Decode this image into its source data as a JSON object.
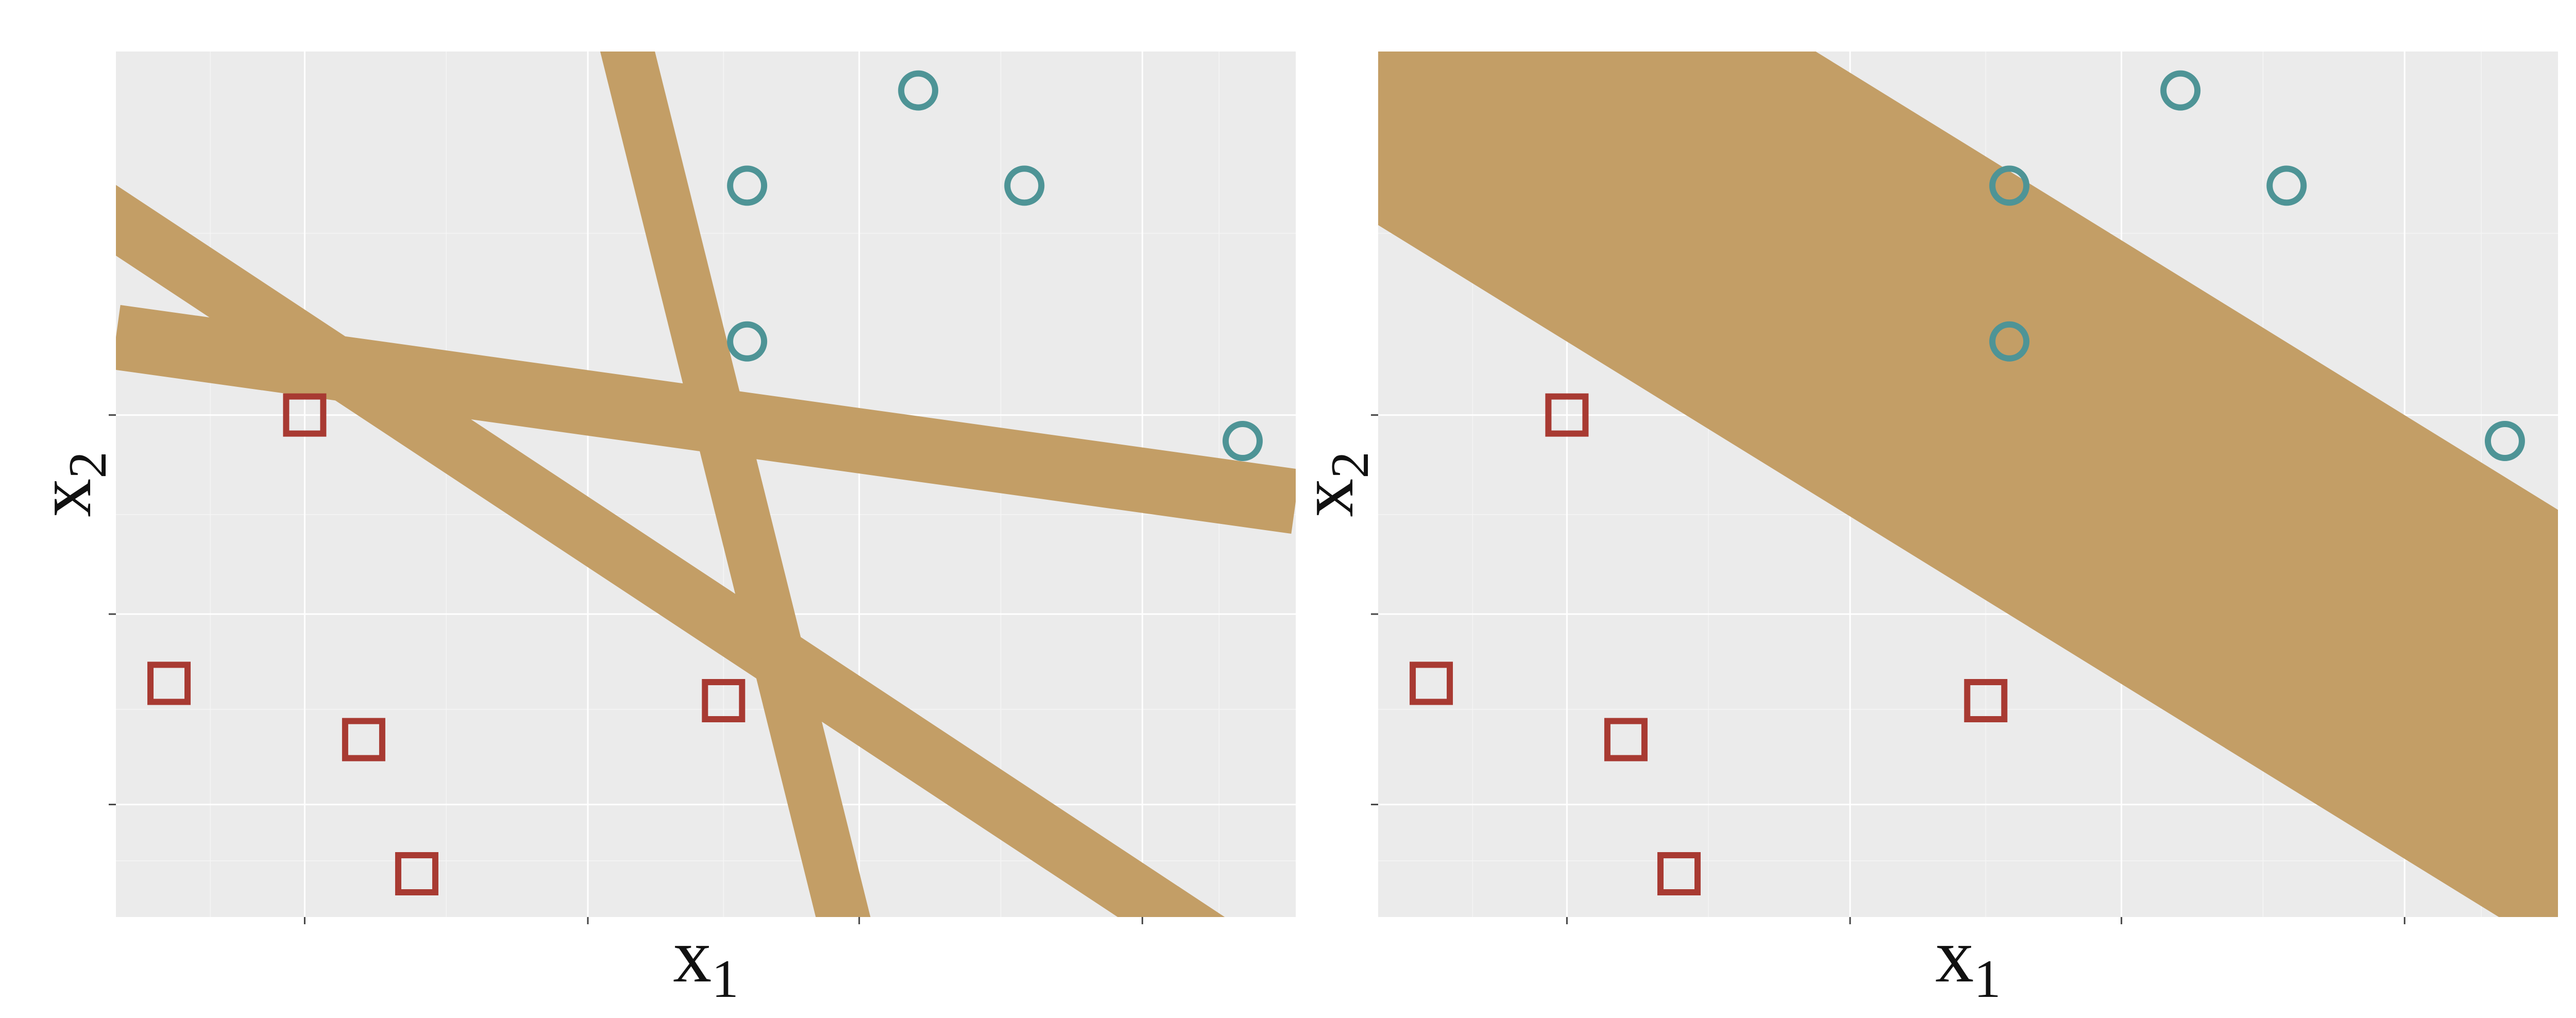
{
  "colors": {
    "panel_background": "#ebebeb",
    "grid": "#ffffff",
    "band": "#c39e66",
    "class_circle": "#4e9496",
    "class_square": "#a83a32"
  },
  "chart_data": [
    {
      "type": "scatter",
      "title": "",
      "xlabel": "x",
      "xlabel_sub": "1",
      "ylabel": "x",
      "ylabel_sub": "2",
      "xlim": [
        0,
        10
      ],
      "ylim": [
        0,
        10
      ],
      "x_major_ticks": [
        1.6,
        4,
        6.3,
        8.7
      ],
      "y_major_ticks": [
        1.3,
        3.5,
        5.8
      ],
      "tick_labels_shown": false,
      "grid": true,
      "legend": "none",
      "series": [
        {
          "marker": "circle",
          "points": [
            [
              6.8,
              9.55
            ],
            [
              5.35,
              8.45
            ],
            [
              7.7,
              8.45
            ],
            [
              5.35,
              6.65
            ],
            [
              9.55,
              5.5
            ]
          ]
        },
        {
          "marker": "square",
          "points": [
            [
              1.6,
              5.8
            ],
            [
              0.45,
              2.7
            ],
            [
              2.1,
              2.05
            ],
            [
              2.55,
              0.5
            ],
            [
              5.15,
              2.5
            ]
          ]
        }
      ],
      "bands": [
        {
          "x1": -0.5,
          "y1": 8.5,
          "x2": 9.5,
          "y2": -0.5,
          "width": 0.5
        },
        {
          "x1": 0,
          "y1": 6.7,
          "x2": 10,
          "y2": 4.8,
          "width": 0.55
        },
        {
          "x1": 4.3,
          "y1": 10.2,
          "x2": 6.2,
          "y2": -0.2,
          "width": 0.45
        }
      ]
    },
    {
      "type": "scatter",
      "title": "",
      "xlabel": "x",
      "xlabel_sub": "1",
      "ylabel": "x",
      "ylabel_sub": "2",
      "xlim": [
        0,
        10
      ],
      "ylim": [
        0,
        10
      ],
      "x_major_ticks": [
        1.6,
        4,
        6.3,
        8.7
      ],
      "y_major_ticks": [
        1.3,
        3.5,
        5.8
      ],
      "tick_labels_shown": false,
      "grid": true,
      "legend": "none",
      "series": [
        {
          "marker": "circle",
          "points": [
            [
              6.8,
              9.55
            ],
            [
              5.35,
              8.45
            ],
            [
              7.7,
              8.45
            ],
            [
              5.35,
              6.65
            ],
            [
              9.55,
              5.5
            ]
          ]
        },
        {
          "marker": "square",
          "points": [
            [
              1.6,
              5.8
            ],
            [
              0.45,
              2.7
            ],
            [
              2.1,
              2.05
            ],
            [
              2.55,
              0.5
            ],
            [
              5.15,
              2.5
            ]
          ]
        }
      ],
      "bands": [
        {
          "x1": -1,
          "y1": 11.4,
          "x2": 11,
          "y2": 1.3,
          "width": 3.2
        }
      ]
    }
  ]
}
